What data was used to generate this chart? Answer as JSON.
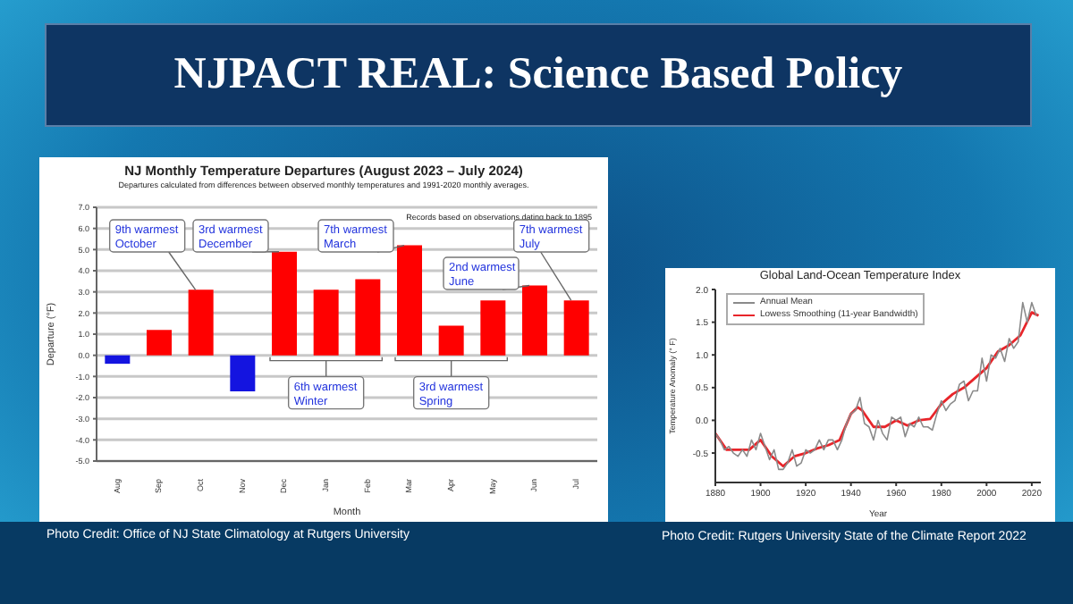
{
  "chart_data": [
    {
      "type": "other",
      "title": "NJPACT REAL: Science Based Policy"
    },
    {
      "type": "bar",
      "title": "NJ Monthly Temperature Departures (August 2023 – July 2024)",
      "subtitle": "Departures calculated from differences between observed monthly temperatures and 1991-2020 monthly averages.",
      "xlabel": "Month",
      "ylabel": "Departure (°F)",
      "categories": [
        "Aug",
        "Sep",
        "Oct",
        "Nov",
        "Dec",
        "Jan",
        "Feb",
        "Mar",
        "Apr",
        "May",
        "Jun",
        "Jul"
      ],
      "values": [
        -0.4,
        1.2,
        3.1,
        -1.7,
        4.9,
        3.1,
        3.6,
        5.2,
        1.4,
        2.6,
        3.3,
        2.6
      ],
      "colors": [
        "#1414e0",
        "#ff0000",
        "#ff0000",
        "#1414e0",
        "#ff0000",
        "#ff0000",
        "#ff0000",
        "#ff0000",
        "#ff0000",
        "#ff0000",
        "#ff0000",
        "#ff0000"
      ],
      "ylim": [
        -5,
        7
      ],
      "yticks": [
        {
          "value": 7,
          "label": "7.0"
        },
        {
          "value": 6,
          "label": "6.0"
        },
        {
          "value": 5,
          "label": "5.0"
        },
        {
          "value": 4,
          "label": "4.0"
        },
        {
          "value": 3,
          "label": "3.0"
        },
        {
          "value": 2,
          "label": "2.0"
        },
        {
          "value": 1,
          "label": "1.0"
        },
        {
          "value": 0,
          "label": "0.0"
        },
        {
          "value": -1,
          "label": "-1.0"
        },
        {
          "value": -2,
          "label": "-2.0"
        },
        {
          "value": -3,
          "label": "-3.0"
        },
        {
          "value": -4,
          "label": "-4.0"
        },
        {
          "value": -5,
          "label": "-5.0"
        }
      ],
      "grid": "y",
      "annotations": [
        {
          "text": "9th warmest October",
          "x": "Oct",
          "y": 3.1
        },
        {
          "text": "3rd warmest December",
          "x": "Dec",
          "y": 4.9
        },
        {
          "text": "7th warmest March",
          "x": "Mar",
          "y": 5.2
        },
        {
          "text": "2nd warmest June",
          "x": "Jun",
          "y": 3.3
        },
        {
          "text": "7th warmest July",
          "x": "Jul",
          "y": 2.6
        },
        {
          "text": "6th warmest Winter",
          "x": "Jan"
        },
        {
          "text": "3rd warmest Spring",
          "x": "Apr"
        },
        "Records based on observations dating back to 1895",
        "Photo Credit: Office of NJ State Climatology at Rutgers University"
      ]
    },
    {
      "type": "line",
      "title": "Global Land-Ocean Temperature Index",
      "xlabel": "Year",
      "ylabel": "Temperature Anomaly (° F)",
      "xlim": [
        1880,
        2024
      ],
      "xticks": [
        1880,
        1900,
        1920,
        1940,
        1960,
        1980,
        2000,
        2020
      ],
      "ylim": [
        -0.95,
        2
      ],
      "yticks": [
        {
          "value": -0.5,
          "label": "-0.5"
        },
        {
          "value": 0,
          "label": "0.0"
        },
        {
          "value": 0.5,
          "label": "0.5"
        },
        {
          "value": 1,
          "label": "1.0"
        },
        {
          "value": 1.5,
          "label": "1.5"
        },
        {
          "value": 2,
          "label": "2.0"
        }
      ],
      "legend": "top left",
      "series": [
        {
          "name": "Annual Mean",
          "color": "#8a8a8a",
          "x": [
            1880,
            1882,
            1884,
            1886,
            1888,
            1890,
            1892,
            1894,
            1896,
            1898,
            1900,
            1902,
            1904,
            1906,
            1908,
            1910,
            1912,
            1914,
            1916,
            1918,
            1920,
            1922,
            1924,
            1926,
            1928,
            1930,
            1932,
            1934,
            1936,
            1938,
            1940,
            1942,
            1944,
            1946,
            1948,
            1950,
            1952,
            1954,
            1956,
            1958,
            1960,
            1962,
            1964,
            1966,
            1968,
            1970,
            1972,
            1974,
            1976,
            1978,
            1980,
            1982,
            1984,
            1986,
            1988,
            1990,
            1992,
            1994,
            1996,
            1998,
            2000,
            2002,
            2004,
            2006,
            2008,
            2010,
            2012,
            2014,
            2016,
            2018,
            2020,
            2022
          ],
          "values": [
            -0.2,
            -0.3,
            -0.45,
            -0.4,
            -0.5,
            -0.55,
            -0.45,
            -0.55,
            -0.3,
            -0.45,
            -0.2,
            -0.4,
            -0.6,
            -0.45,
            -0.75,
            -0.75,
            -0.65,
            -0.45,
            -0.7,
            -0.65,
            -0.45,
            -0.5,
            -0.45,
            -0.3,
            -0.45,
            -0.3,
            -0.3,
            -0.45,
            -0.3,
            -0.05,
            0.1,
            0.15,
            0.35,
            -0.05,
            -0.1,
            -0.3,
            0,
            -0.2,
            -0.3,
            0.05,
            0,
            0.05,
            -0.25,
            -0.05,
            -0.1,
            0.05,
            -0.1,
            -0.1,
            -0.15,
            0.1,
            0.3,
            0.15,
            0.25,
            0.3,
            0.55,
            0.6,
            0.3,
            0.45,
            0.45,
            0.95,
            0.6,
            1,
            0.95,
            1.1,
            0.9,
            1.25,
            1.1,
            1.2,
            1.8,
            1.5,
            1.8,
            1.6
          ]
        },
        {
          "name": "Lowess Smoothing (11-year Bandwidth)",
          "color": "#e8252a",
          "x": [
            1880,
            1885,
            1890,
            1895,
            1900,
            1905,
            1910,
            1915,
            1920,
            1925,
            1930,
            1935,
            1940,
            1943,
            1945,
            1950,
            1955,
            1960,
            1965,
            1970,
            1975,
            1980,
            1985,
            1990,
            1995,
            2000,
            2005,
            2010,
            2015,
            2020,
            2023
          ],
          "values": [
            -0.2,
            -0.45,
            -0.45,
            -0.45,
            -0.3,
            -0.55,
            -0.7,
            -0.55,
            -0.5,
            -0.43,
            -0.38,
            -0.3,
            0.1,
            0.2,
            0.15,
            -0.1,
            -0.1,
            0,
            -0.08,
            0,
            0.02,
            0.25,
            0.4,
            0.5,
            0.65,
            0.8,
            1.05,
            1.15,
            1.3,
            1.65,
            1.6
          ]
        }
      ],
      "annotations": [
        "Photo Credit: Rutgers University State of the Climate Report 2022"
      ]
    }
  ]
}
